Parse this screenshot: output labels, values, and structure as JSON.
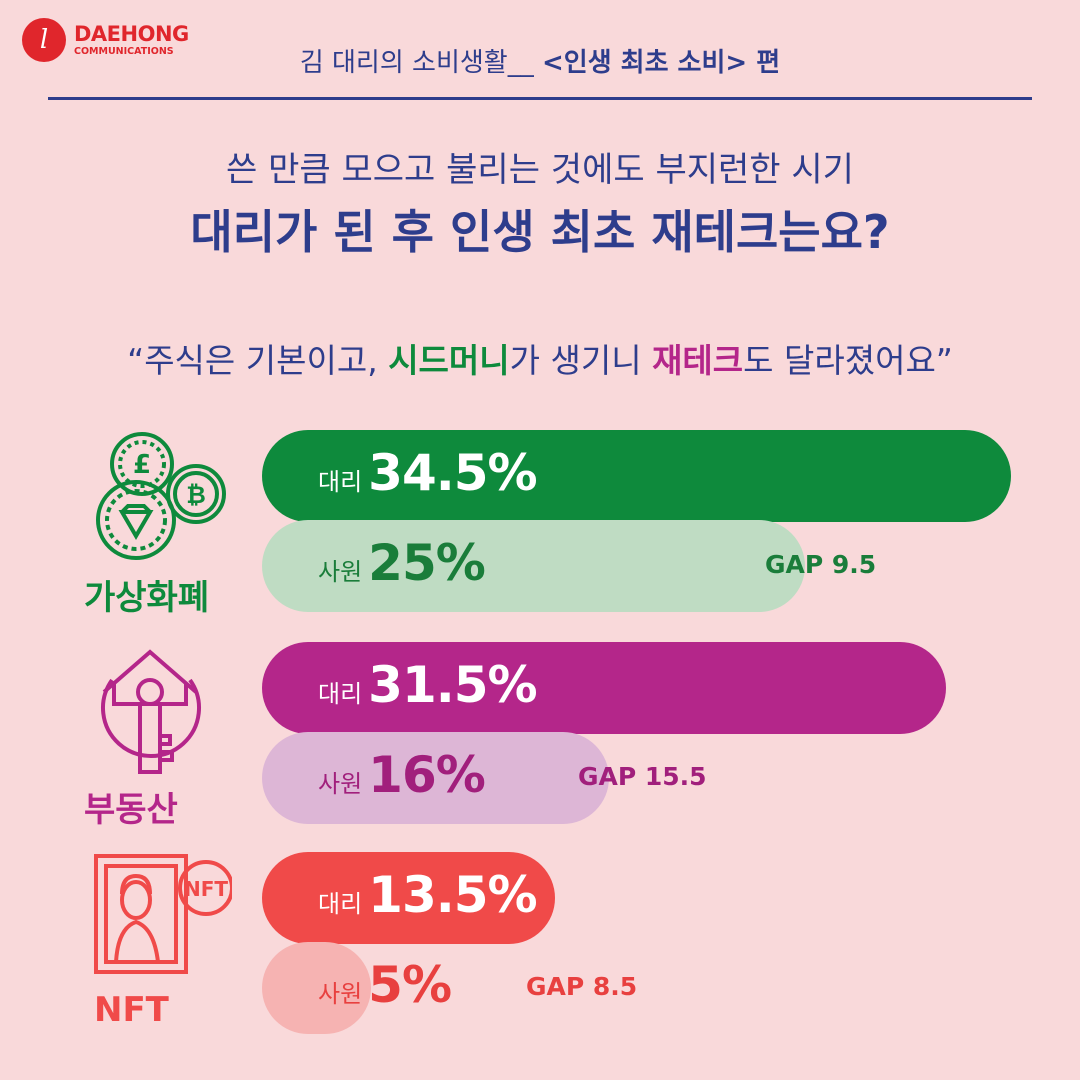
{
  "brand": {
    "mark": "l",
    "name": "DAEHONG",
    "sub": "COMMUNICATIONS",
    "color": "#e0262c"
  },
  "header": {
    "title_normal": "김 대리의 소비생활__",
    "title_bold": "<인생 최초 소비> 편"
  },
  "subtitle": "쓴 만큼 모으고 불리는 것에도 부지런한 시기",
  "title": "대리가 된 후 인생 최초 재테크는요?",
  "quote": {
    "open": "“주식은 기본이고, ",
    "highlight1": "시드머니",
    "mid": "가 생기니 ",
    "highlight2": "재테크",
    "close": "도 달라졌어요”"
  },
  "chart_data": {
    "type": "bar",
    "orientation": "horizontal",
    "categories": [
      "가상화폐",
      "부동산",
      "NFT"
    ],
    "series": [
      {
        "name": "대리",
        "values": [
          34.5,
          31.5,
          13.5
        ]
      },
      {
        "name": "사원",
        "values": [
          25,
          16,
          5
        ]
      }
    ],
    "value_labels": {
      "대리": [
        "34.5%",
        "31.5%",
        "13.5%"
      ],
      "사원": [
        "25%",
        "16%",
        "5%"
      ]
    },
    "gaps": [
      "GAP 9.5",
      "GAP 15.5",
      "GAP 8.5"
    ],
    "colors": {
      "가상화폐": {
        "dark": "#0e8a3c",
        "light": "#bfdcc3",
        "label_dark": "#ffffff",
        "label_light": "#1a7d3a"
      },
      "부동산": {
        "dark": "#b4268a",
        "light": "#ddb6d6",
        "label_dark": "#ffffff",
        "label_light": "#a11f7c"
      },
      "NFT": {
        "dark": "#f04a49",
        "light": "#f6b3b2",
        "label_dark": "#ffffff",
        "label_light": "#e8403f"
      }
    },
    "icons": [
      "crypto-coins-icon",
      "house-key-icon",
      "nft-painting-icon"
    ]
  }
}
